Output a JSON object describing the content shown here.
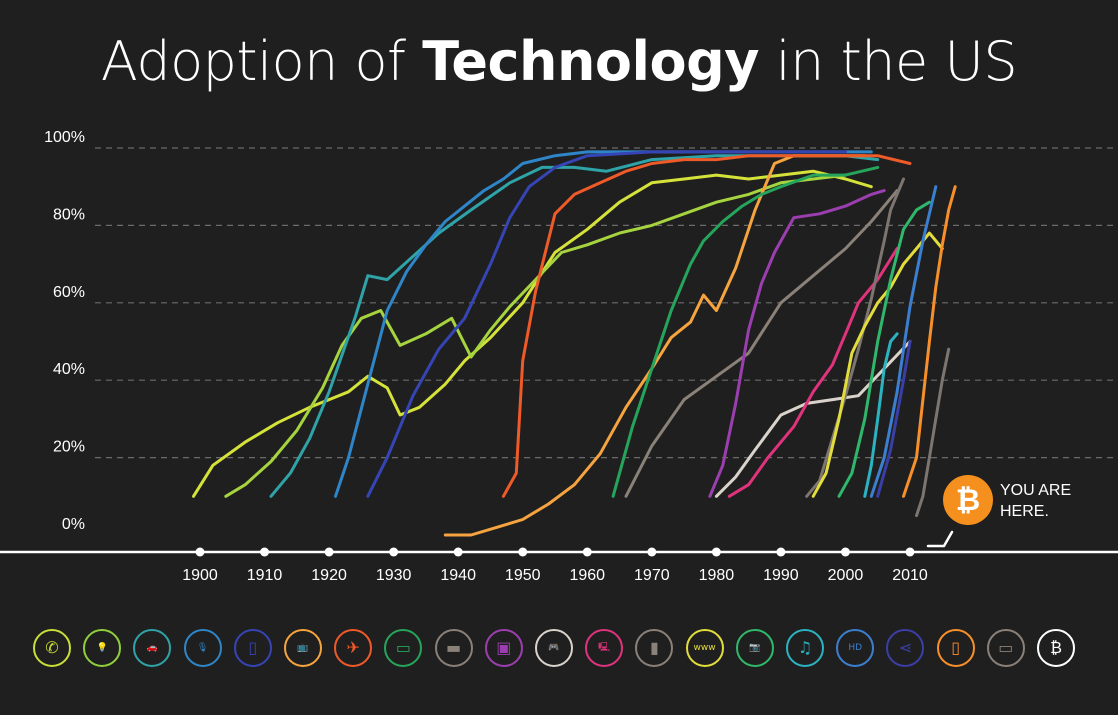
{
  "title": {
    "part1": "Adoption of",
    "part2": "Technology",
    "part3": "in the US"
  },
  "you_are_here": {
    "line1": "YOU ARE",
    "line2": "HERE.",
    "badge_symbol": "₿"
  },
  "chart_data": {
    "type": "line",
    "title": "Adoption of Technology in the US",
    "xlabel": "",
    "ylabel": "",
    "xlim": [
      1890,
      2020
    ],
    "ylim": [
      0,
      100
    ],
    "x_ticks": [
      "1900",
      "1910",
      "1920",
      "1930",
      "1940",
      "1950",
      "1960",
      "1970",
      "1980",
      "1990",
      "2000",
      "2010"
    ],
    "y_ticks": [
      "0%",
      "20%",
      "40%",
      "60%",
      "80%",
      "100%"
    ],
    "grid": "horizontal dashed",
    "series": [
      {
        "icon": "telephone-icon",
        "color": "#d4e23a",
        "points": [
          [
            1899,
            10
          ],
          [
            1902,
            18
          ],
          [
            1907,
            24
          ],
          [
            1912,
            29
          ],
          [
            1917,
            33
          ],
          [
            1920,
            35
          ],
          [
            1923,
            37
          ],
          [
            1926,
            41
          ],
          [
            1929,
            38
          ],
          [
            1931,
            31
          ],
          [
            1934,
            33
          ],
          [
            1938,
            39
          ],
          [
            1941,
            45
          ],
          [
            1945,
            51
          ],
          [
            1950,
            60
          ],
          [
            1955,
            73
          ],
          [
            1960,
            79
          ],
          [
            1965,
            86
          ],
          [
            1970,
            91
          ],
          [
            1975,
            92
          ],
          [
            1980,
            93
          ],
          [
            1985,
            92
          ],
          [
            1990,
            93
          ],
          [
            1995,
            94
          ],
          [
            2000,
            92
          ],
          [
            2004,
            90
          ]
        ]
      },
      {
        "icon": "lightbulb-icon",
        "color": "#a6d43f",
        "points": [
          [
            1904,
            10
          ],
          [
            1907,
            13
          ],
          [
            1911,
            19
          ],
          [
            1915,
            27
          ],
          [
            1919,
            38
          ],
          [
            1922,
            49
          ],
          [
            1925,
            56
          ],
          [
            1928,
            58
          ],
          [
            1931,
            49
          ],
          [
            1935,
            52
          ],
          [
            1939,
            56
          ],
          [
            1942,
            46
          ],
          [
            1945,
            53
          ],
          [
            1948,
            59
          ],
          [
            1952,
            66
          ],
          [
            1956,
            73
          ],
          [
            1960,
            75
          ],
          [
            1965,
            78
          ],
          [
            1970,
            80
          ],
          [
            1975,
            83
          ],
          [
            1980,
            86
          ],
          [
            1985,
            88
          ],
          [
            1990,
            91
          ],
          [
            1995,
            92
          ],
          [
            2000,
            93
          ]
        ]
      },
      {
        "icon": "car-icon",
        "color": "#2ea3a8",
        "points": [
          [
            1911,
            10
          ],
          [
            1914,
            16
          ],
          [
            1917,
            25
          ],
          [
            1920,
            37
          ],
          [
            1924,
            56
          ],
          [
            1926,
            67
          ],
          [
            1929,
            66
          ],
          [
            1933,
            72
          ],
          [
            1937,
            78
          ],
          [
            1942,
            84
          ],
          [
            1948,
            91
          ],
          [
            1953,
            95
          ],
          [
            1958,
            95
          ],
          [
            1963,
            94
          ],
          [
            1970,
            97
          ],
          [
            1980,
            98
          ],
          [
            1990,
            98
          ],
          [
            2000,
            98
          ],
          [
            2005,
            97
          ]
        ]
      },
      {
        "icon": "radio-icon",
        "color": "#2e86c9",
        "points": [
          [
            1921,
            10
          ],
          [
            1923,
            20
          ],
          [
            1926,
            39
          ],
          [
            1929,
            58
          ],
          [
            1932,
            68
          ],
          [
            1935,
            75
          ],
          [
            1938,
            81
          ],
          [
            1941,
            85
          ],
          [
            1944,
            89
          ],
          [
            1947,
            92
          ],
          [
            1950,
            96
          ],
          [
            1955,
            98
          ],
          [
            1960,
            99
          ],
          [
            1970,
            99
          ],
          [
            1980,
            99
          ],
          [
            1990,
            99
          ],
          [
            2000,
            99
          ],
          [
            2004,
            99
          ]
        ]
      },
      {
        "icon": "refrigerator-icon",
        "color": "#3545b5",
        "points": [
          [
            1926,
            10
          ],
          [
            1929,
            20
          ],
          [
            1933,
            36
          ],
          [
            1937,
            48
          ],
          [
            1941,
            56
          ],
          [
            1945,
            70
          ],
          [
            1948,
            82
          ],
          [
            1951,
            90
          ],
          [
            1955,
            95
          ],
          [
            1960,
            98
          ],
          [
            1970,
            99
          ],
          [
            1980,
            99
          ],
          [
            1990,
            99
          ],
          [
            2000,
            99
          ]
        ]
      },
      {
        "icon": "television-icon",
        "color": "#f5a43f",
        "points": [
          [
            1938,
            0
          ],
          [
            1942,
            0
          ],
          [
            1946,
            2
          ],
          [
            1950,
            4
          ],
          [
            1954,
            8
          ],
          [
            1958,
            13
          ],
          [
            1962,
            21
          ],
          [
            1966,
            33
          ],
          [
            1970,
            43
          ],
          [
            1973,
            51
          ],
          [
            1976,
            55
          ],
          [
            1978,
            62
          ],
          [
            1980,
            58
          ],
          [
            1983,
            69
          ],
          [
            1986,
            84
          ],
          [
            1989,
            96
          ],
          [
            1992,
            98
          ],
          [
            1997,
            98
          ],
          [
            2003,
            98
          ]
        ]
      },
      {
        "icon": "airplane-icon",
        "color": "#ee5a28",
        "points": [
          [
            1947,
            10
          ],
          [
            1949,
            16
          ],
          [
            1950,
            45
          ],
          [
            1952,
            63
          ],
          [
            1955,
            83
          ],
          [
            1958,
            88
          ],
          [
            1962,
            91
          ],
          [
            1966,
            94
          ],
          [
            1970,
            96
          ],
          [
            1975,
            97
          ],
          [
            1980,
            97
          ],
          [
            1985,
            98
          ],
          [
            1990,
            98
          ],
          [
            2000,
            98
          ],
          [
            2005,
            98
          ],
          [
            2010,
            96
          ]
        ]
      },
      {
        "icon": "computer-icon",
        "color": "#25a55c",
        "points": [
          [
            1964,
            10
          ],
          [
            1967,
            28
          ],
          [
            1970,
            43
          ],
          [
            1973,
            58
          ],
          [
            1976,
            70
          ],
          [
            1978,
            76
          ],
          [
            1981,
            81
          ],
          [
            1984,
            85
          ],
          [
            1987,
            88
          ],
          [
            1990,
            90
          ],
          [
            1995,
            93
          ],
          [
            2000,
            93
          ],
          [
            2005,
            95
          ]
        ]
      },
      {
        "icon": "credit-card-icon",
        "color": "#8a8178",
        "points": [
          [
            1966,
            10
          ],
          [
            1970,
            23
          ],
          [
            1975,
            35
          ],
          [
            1980,
            41
          ],
          [
            1985,
            47
          ],
          [
            1990,
            60
          ],
          [
            1995,
            67
          ],
          [
            2000,
            74
          ],
          [
            2004,
            81
          ],
          [
            2008,
            89
          ]
        ]
      },
      {
        "icon": "vcr-icon",
        "color": "#9b3fb0",
        "points": [
          [
            1979,
            10
          ],
          [
            1981,
            18
          ],
          [
            1983,
            34
          ],
          [
            1985,
            53
          ],
          [
            1987,
            65
          ],
          [
            1989,
            73
          ],
          [
            1992,
            82
          ],
          [
            1996,
            83
          ],
          [
            2000,
            85
          ],
          [
            2004,
            88
          ],
          [
            2006,
            89
          ]
        ]
      },
      {
        "icon": "game-console-icon",
        "color": "#d9d3cb",
        "points": [
          [
            1980,
            10
          ],
          [
            1983,
            15
          ],
          [
            1986,
            22
          ],
          [
            1990,
            31
          ],
          [
            1994,
            34
          ],
          [
            1998,
            35
          ],
          [
            2002,
            36
          ],
          [
            2006,
            43
          ],
          [
            2010,
            50
          ]
        ]
      },
      {
        "icon": "personal-computer-icon",
        "color": "#e0337d",
        "points": [
          [
            1982,
            10
          ],
          [
            1985,
            13
          ],
          [
            1988,
            20
          ],
          [
            1992,
            28
          ],
          [
            1995,
            37
          ],
          [
            1998,
            44
          ],
          [
            2000,
            52
          ],
          [
            2002,
            60
          ],
          [
            2005,
            66
          ],
          [
            2008,
            74
          ]
        ]
      },
      {
        "icon": "cell-phone-icon",
        "color": "#7d7670",
        "points": [
          [
            1994,
            10
          ],
          [
            1996,
            14
          ],
          [
            1998,
            25
          ],
          [
            2000,
            36
          ],
          [
            2002,
            48
          ],
          [
            2004,
            61
          ],
          [
            2006,
            76
          ],
          [
            2007,
            84
          ],
          [
            2009,
            92
          ]
        ]
      },
      {
        "icon": "internet-icon",
        "color": "#e3dd3c",
        "points": [
          [
            1995,
            10
          ],
          [
            1997,
            16
          ],
          [
            1999,
            30
          ],
          [
            2001,
            47
          ],
          [
            2003,
            54
          ],
          [
            2005,
            60
          ],
          [
            2007,
            64
          ],
          [
            2009,
            70
          ],
          [
            2011,
            74
          ],
          [
            2013,
            78
          ],
          [
            2015,
            74
          ]
        ]
      },
      {
        "icon": "digital-camera-icon",
        "color": "#2fb86b",
        "points": [
          [
            1999,
            10
          ],
          [
            2001,
            16
          ],
          [
            2003,
            30
          ],
          [
            2005,
            50
          ],
          [
            2007,
            66
          ],
          [
            2009,
            79
          ],
          [
            2011,
            84
          ],
          [
            2013,
            86
          ]
        ]
      },
      {
        "icon": "mp3-player-icon",
        "color": "#2bb3c2",
        "points": [
          [
            2003,
            10
          ],
          [
            2004,
            18
          ],
          [
            2005,
            30
          ],
          [
            2006,
            43
          ],
          [
            2007,
            50
          ],
          [
            2008,
            52
          ]
        ]
      },
      {
        "icon": "hdtv-icon",
        "color": "#3b7fd0",
        "points": [
          [
            2004,
            10
          ],
          [
            2006,
            20
          ],
          [
            2008,
            37
          ],
          [
            2010,
            59
          ],
          [
            2012,
            76
          ],
          [
            2014,
            90
          ]
        ]
      },
      {
        "icon": "social-media-icon",
        "color": "#3a3fa6",
        "points": [
          [
            2005,
            10
          ],
          [
            2007,
            22
          ],
          [
            2009,
            40
          ],
          [
            2010,
            50
          ]
        ]
      },
      {
        "icon": "smartphone-icon",
        "color": "#f7902a",
        "points": [
          [
            2009,
            10
          ],
          [
            2011,
            20
          ],
          [
            2012,
            35
          ],
          [
            2013,
            50
          ],
          [
            2014,
            64
          ],
          [
            2015,
            75
          ],
          [
            2016,
            84
          ],
          [
            2017,
            90
          ]
        ]
      },
      {
        "icon": "tablet-icon",
        "color": "#7d7670",
        "points": [
          [
            2011,
            5
          ],
          [
            2012,
            10
          ],
          [
            2013,
            20
          ],
          [
            2014,
            30
          ],
          [
            2015,
            40
          ],
          [
            2016,
            48
          ]
        ]
      }
    ]
  },
  "legend_icons": [
    {
      "name": "telephone-icon",
      "color": "#c9dd37",
      "glyph": "✆"
    },
    {
      "name": "lightbulb-icon",
      "color": "#8fcf3a",
      "glyph": "💡"
    },
    {
      "name": "car-icon",
      "color": "#2ea3a8",
      "glyph": "🚗"
    },
    {
      "name": "radio-icon",
      "color": "#2e86c9",
      "glyph": "🎙"
    },
    {
      "name": "refrigerator-icon",
      "color": "#3545b5",
      "glyph": "▯"
    },
    {
      "name": "television-icon",
      "color": "#f5a43f",
      "glyph": "📺"
    },
    {
      "name": "airplane-icon",
      "color": "#ee5a28",
      "glyph": "✈"
    },
    {
      "name": "computer-icon",
      "color": "#25a55c",
      "glyph": "▭"
    },
    {
      "name": "credit-card-icon",
      "color": "#8a8178",
      "glyph": "▬"
    },
    {
      "name": "vcr-icon",
      "color": "#9b3fb0",
      "glyph": "▣"
    },
    {
      "name": "game-console-icon",
      "color": "#d9d3cb",
      "glyph": "🎮"
    },
    {
      "name": "personal-computer-icon",
      "color": "#e0337d",
      "glyph": "🖳"
    },
    {
      "name": "cell-phone-icon",
      "color": "#8a8178",
      "glyph": "▮"
    },
    {
      "name": "internet-icon",
      "color": "#e3dd3c",
      "glyph": "www"
    },
    {
      "name": "digital-camera-icon",
      "color": "#2fb86b",
      "glyph": "📷"
    },
    {
      "name": "mp3-player-icon",
      "color": "#2bb3c2",
      "glyph": "♫"
    },
    {
      "name": "hdtv-icon",
      "color": "#3b7fd0",
      "glyph": "HD"
    },
    {
      "name": "social-media-icon",
      "color": "#3a3fa6",
      "glyph": "⋖"
    },
    {
      "name": "smartphone-icon",
      "color": "#f7902a",
      "glyph": "▯"
    },
    {
      "name": "tablet-icon",
      "color": "#8a8178",
      "glyph": "▭"
    },
    {
      "name": "bitcoin-icon",
      "color": "#ffffff",
      "glyph": "₿"
    }
  ],
  "colors": {
    "background": "#201f1f",
    "axis": "#ffffff",
    "grid": "#6b6b6b",
    "accent": "#f5901e"
  }
}
